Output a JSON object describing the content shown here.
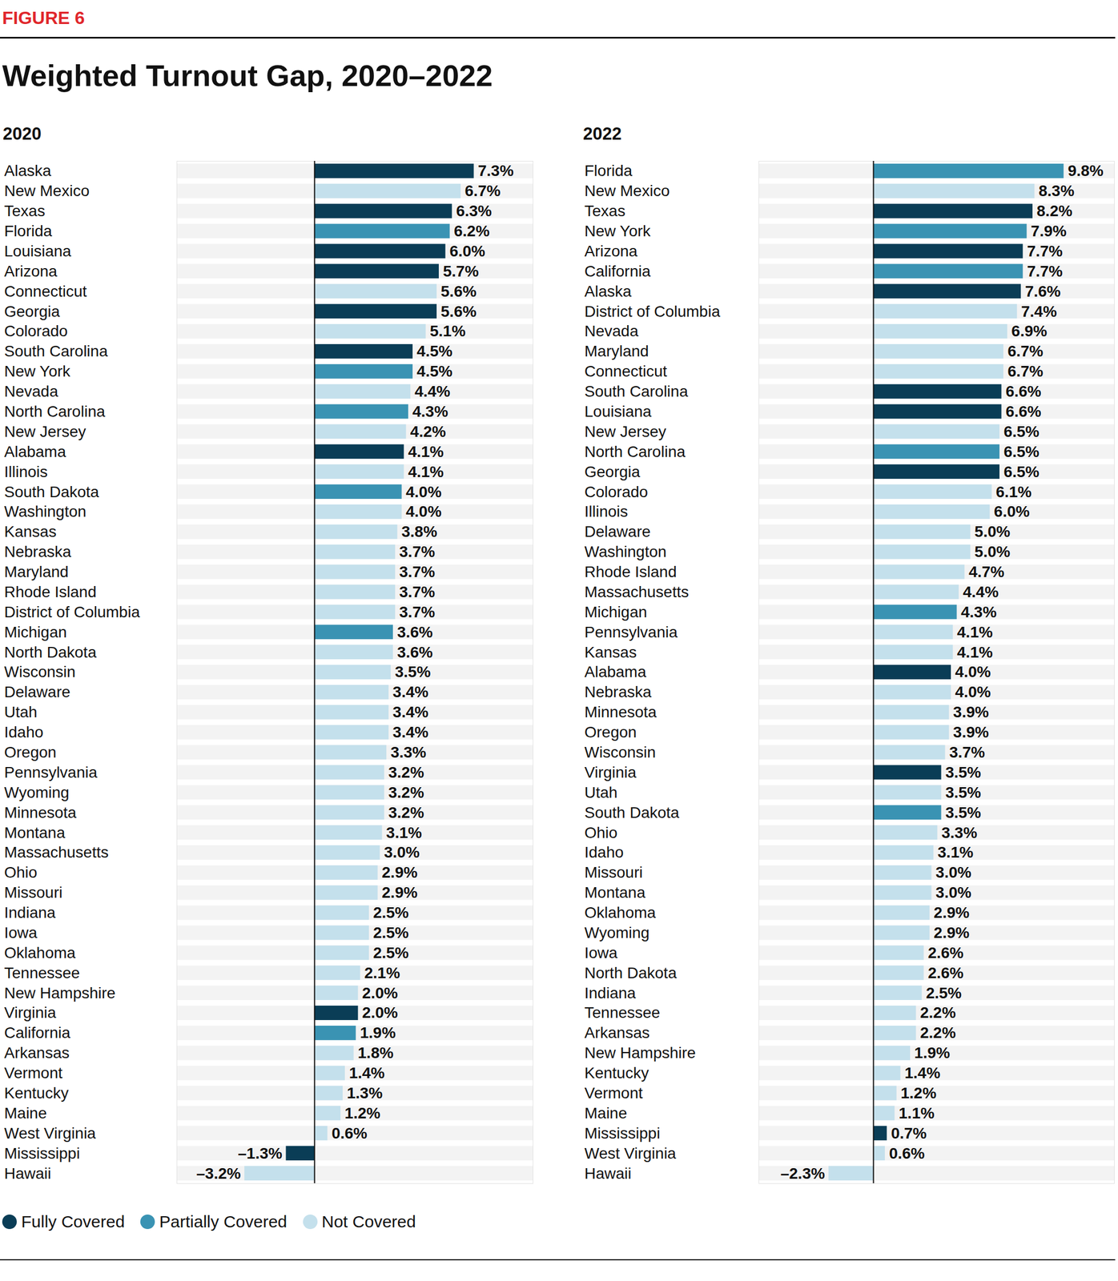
{
  "figure_label": "FIGURE 6",
  "title": "Weighted Turnout Gap, 2020–2022",
  "legend_items": [
    {
      "name": "Fully Covered",
      "color": "#0a3d56"
    },
    {
      "name": "Partially Covered",
      "color": "#3a93b3"
    },
    {
      "name": "Not Covered",
      "color": "#c4e0ec"
    }
  ],
  "chart_data": [
    {
      "type": "bar",
      "title": "2020",
      "orientation": "horizontal",
      "data_labels": true,
      "tick_labels": false,
      "xlim": [
        -6.3,
        10
      ],
      "xticks": [
        0
      ],
      "categories": [
        "Alaska",
        "New Mexico",
        "Texas",
        "Florida",
        "Louisiana",
        "Arizona",
        "Connecticut",
        "Georgia",
        "Colorado",
        "South Carolina",
        "New York",
        "Nevada",
        "North Carolina",
        "New Jersey",
        "Alabama",
        "Illinois",
        "South Dakota",
        "Washington",
        "Kansas",
        "Nebraska",
        "Maryland",
        "Rhode Island",
        "District of Columbia",
        "Michigan",
        "North Dakota",
        "Wisconsin",
        "Delaware",
        "Utah",
        "Idaho",
        "Oregon",
        "Pennsylvania",
        "Wyoming",
        "Minnesota",
        "Montana",
        "Massachusetts",
        "Ohio",
        "Missouri",
        "Indiana",
        "Iowa",
        "Oklahoma",
        "Tennessee",
        "New Hampshire",
        "Virginia",
        "California",
        "Arkansas",
        "Vermont",
        "Kentucky",
        "Maine",
        "West Virginia",
        "Mississippi",
        "Hawaii"
      ],
      "values": [
        7.3,
        6.7,
        6.3,
        6.2,
        6.0,
        5.7,
        5.6,
        5.6,
        5.1,
        4.5,
        4.5,
        4.4,
        4.3,
        4.2,
        4.1,
        4.1,
        4.0,
        4.0,
        3.8,
        3.7,
        3.7,
        3.7,
        3.7,
        3.6,
        3.6,
        3.5,
        3.4,
        3.4,
        3.4,
        3.3,
        3.2,
        3.2,
        3.2,
        3.1,
        3.0,
        2.9,
        2.9,
        2.5,
        2.5,
        2.5,
        2.1,
        2.0,
        2.0,
        1.9,
        1.8,
        1.4,
        1.3,
        1.2,
        0.6,
        -1.3,
        -3.2
      ],
      "value_labels": [
        "7.3%",
        "6.7%",
        "6.3%",
        "6.2%",
        "6.0%",
        "5.7%",
        "5.6%",
        "5.6%",
        "5.1%",
        "4.5%",
        "4.5%",
        "4.4%",
        "4.3%",
        "4.2%",
        "4.1%",
        "4.1%",
        "4.0%",
        "4.0%",
        "3.8%",
        "3.7%",
        "3.7%",
        "3.7%",
        "3.7%",
        "3.6%",
        "3.6%",
        "3.5%",
        "3.4%",
        "3.4%",
        "3.4%",
        "3.3%",
        "3.2%",
        "3.2%",
        "3.2%",
        "3.1%",
        "3.0%",
        "2.9%",
        "2.9%",
        "2.5%",
        "2.5%",
        "2.5%",
        "2.1%",
        "2.0%",
        "2.0%",
        "1.9%",
        "1.8%",
        "1.4%",
        "1.3%",
        "1.2%",
        "0.6%",
        "–1.3%",
        "–3.2%"
      ],
      "colors": [
        "#0a3d56",
        "#c4e0ec",
        "#0a3d56",
        "#3a93b3",
        "#0a3d56",
        "#0a3d56",
        "#c4e0ec",
        "#0a3d56",
        "#c4e0ec",
        "#0a3d56",
        "#3a93b3",
        "#c4e0ec",
        "#3a93b3",
        "#c4e0ec",
        "#0a3d56",
        "#c4e0ec",
        "#3a93b3",
        "#c4e0ec",
        "#c4e0ec",
        "#c4e0ec",
        "#c4e0ec",
        "#c4e0ec",
        "#c4e0ec",
        "#3a93b3",
        "#c4e0ec",
        "#c4e0ec",
        "#c4e0ec",
        "#c4e0ec",
        "#c4e0ec",
        "#c4e0ec",
        "#c4e0ec",
        "#c4e0ec",
        "#c4e0ec",
        "#c4e0ec",
        "#c4e0ec",
        "#c4e0ec",
        "#c4e0ec",
        "#c4e0ec",
        "#c4e0ec",
        "#c4e0ec",
        "#c4e0ec",
        "#c4e0ec",
        "#0a3d56",
        "#3a93b3",
        "#c4e0ec",
        "#c4e0ec",
        "#c4e0ec",
        "#c4e0ec",
        "#c4e0ec",
        "#0a3d56",
        "#c4e0ec"
      ]
    },
    {
      "type": "bar",
      "title": "2022",
      "orientation": "horizontal",
      "data_labels": true,
      "tick_labels": false,
      "xlim": [
        -5.9,
        12.4
      ],
      "xticks": [
        0
      ],
      "categories": [
        "Florida",
        "New Mexico",
        "Texas",
        "New York",
        "Arizona",
        "California",
        "Alaska",
        "District of Columbia",
        "Nevada",
        "Maryland",
        "Connecticut",
        "South Carolina",
        "Louisiana",
        "New Jersey",
        "North Carolina",
        "Georgia",
        "Colorado",
        "Illinois",
        "Delaware",
        "Washington",
        "Rhode Island",
        "Massachusetts",
        "Michigan",
        "Pennsylvania",
        "Kansas",
        "Alabama",
        "Nebraska",
        "Minnesota",
        "Oregon",
        "Wisconsin",
        "Virginia",
        "Utah",
        "South Dakota",
        "Ohio",
        "Idaho",
        "Missouri",
        "Montana",
        "Oklahoma",
        "Wyoming",
        "Iowa",
        "North Dakota",
        "Indiana",
        "Tennessee",
        "Arkansas",
        "New Hampshire",
        "Kentucky",
        "Vermont",
        "Maine",
        "Mississippi",
        "West Virginia",
        "Hawaii"
      ],
      "values": [
        9.8,
        8.3,
        8.2,
        7.9,
        7.7,
        7.7,
        7.6,
        7.4,
        6.9,
        6.7,
        6.7,
        6.6,
        6.6,
        6.5,
        6.5,
        6.5,
        6.1,
        6.0,
        5.0,
        5.0,
        4.7,
        4.4,
        4.3,
        4.1,
        4.1,
        4.0,
        4.0,
        3.9,
        3.9,
        3.7,
        3.5,
        3.5,
        3.5,
        3.3,
        3.1,
        3.0,
        3.0,
        2.9,
        2.9,
        2.6,
        2.6,
        2.5,
        2.2,
        2.2,
        1.9,
        1.4,
        1.2,
        1.1,
        0.7,
        0.6,
        -2.3
      ],
      "value_labels": [
        "9.8%",
        "8.3%",
        "8.2%",
        "7.9%",
        "7.7%",
        "7.7%",
        "7.6%",
        "7.4%",
        "6.9%",
        "6.7%",
        "6.7%",
        "6.6%",
        "6.6%",
        "6.5%",
        "6.5%",
        "6.5%",
        "6.1%",
        "6.0%",
        "5.0%",
        "5.0%",
        "4.7%",
        "4.4%",
        "4.3%",
        "4.1%",
        "4.1%",
        "4.0%",
        "4.0%",
        "3.9%",
        "3.9%",
        "3.7%",
        "3.5%",
        "3.5%",
        "3.5%",
        "3.3%",
        "3.1%",
        "3.0%",
        "3.0%",
        "2.9%",
        "2.9%",
        "2.6%",
        "2.6%",
        "2.5%",
        "2.2%",
        "2.2%",
        "1.9%",
        "1.4%",
        "1.2%",
        "1.1%",
        "0.7%",
        "0.6%",
        "–2.3%"
      ],
      "colors": [
        "#3a93b3",
        "#c4e0ec",
        "#0a3d56",
        "#3a93b3",
        "#0a3d56",
        "#3a93b3",
        "#0a3d56",
        "#c4e0ec",
        "#c4e0ec",
        "#c4e0ec",
        "#c4e0ec",
        "#0a3d56",
        "#0a3d56",
        "#c4e0ec",
        "#3a93b3",
        "#0a3d56",
        "#c4e0ec",
        "#c4e0ec",
        "#c4e0ec",
        "#c4e0ec",
        "#c4e0ec",
        "#c4e0ec",
        "#3a93b3",
        "#c4e0ec",
        "#c4e0ec",
        "#0a3d56",
        "#c4e0ec",
        "#c4e0ec",
        "#c4e0ec",
        "#c4e0ec",
        "#0a3d56",
        "#c4e0ec",
        "#3a93b3",
        "#c4e0ec",
        "#c4e0ec",
        "#c4e0ec",
        "#c4e0ec",
        "#c4e0ec",
        "#c4e0ec",
        "#c4e0ec",
        "#c4e0ec",
        "#c4e0ec",
        "#c4e0ec",
        "#c4e0ec",
        "#c4e0ec",
        "#c4e0ec",
        "#c4e0ec",
        "#c4e0ec",
        "#0a3d56",
        "#c4e0ec",
        "#c4e0ec"
      ]
    }
  ]
}
